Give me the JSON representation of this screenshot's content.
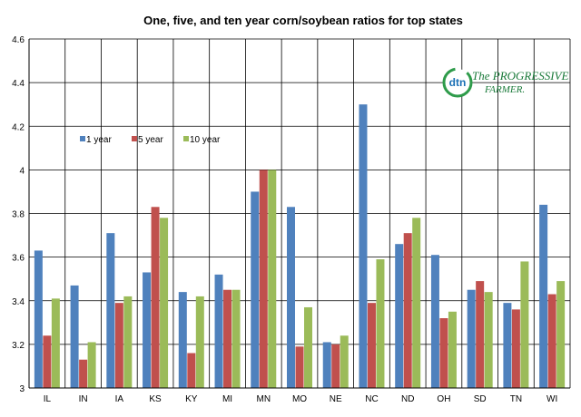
{
  "chart_data": {
    "type": "bar",
    "title": "One, five, and ten year corn/soybean ratios for top states",
    "categories": [
      "IL",
      "IN",
      "IA",
      "KS",
      "KY",
      "MI",
      "MN",
      "MO",
      "NE",
      "NC",
      "ND",
      "OH",
      "SD",
      "TN",
      "WI"
    ],
    "series": [
      {
        "name": "1 year",
        "color": "#4f81bd",
        "values": [
          3.63,
          3.47,
          3.71,
          3.53,
          3.44,
          3.52,
          3.9,
          3.83,
          3.21,
          4.3,
          3.66,
          3.61,
          3.45,
          3.39,
          3.84
        ]
      },
      {
        "name": "5 year",
        "color": "#c0504d",
        "values": [
          3.24,
          3.13,
          3.39,
          3.83,
          3.16,
          3.45,
          4.0,
          3.19,
          3.2,
          3.39,
          3.71,
          3.32,
          3.49,
          3.36,
          3.43
        ]
      },
      {
        "name": "10 year",
        "color": "#9bbb59",
        "values": [
          3.41,
          3.21,
          3.42,
          3.78,
          3.42,
          3.45,
          4.0,
          3.37,
          3.24,
          3.59,
          3.78,
          3.35,
          3.44,
          3.58,
          3.49
        ]
      }
    ],
    "ylim": [
      3,
      4.6
    ],
    "yticks": [
      "3",
      "3.2",
      "3.4",
      "3.6",
      "3.8",
      "4",
      "4.2",
      "4.4",
      "4.6"
    ],
    "xlabel": "",
    "ylabel": "",
    "grid": true,
    "legend_position": "upper-left inside plot"
  },
  "logo": {
    "mark": "dtn",
    "line1": "The PROGRESSIVE",
    "line2": "FARMER."
  }
}
